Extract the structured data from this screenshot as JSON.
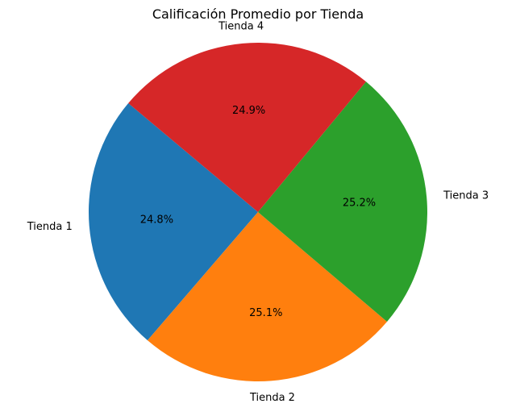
{
  "chart_data": {
    "type": "pie",
    "title": "Calificación Promedio por Tienda",
    "categories": [
      "Tienda 1",
      "Tienda 2",
      "Tienda 3",
      "Tienda 4"
    ],
    "values": [
      24.8,
      25.1,
      25.2,
      24.9
    ],
    "percent_labels": [
      "24.8%",
      "25.1%",
      "25.2%",
      "24.9%"
    ],
    "colors": [
      "#1f77b4",
      "#ff7f0e",
      "#2ca02c",
      "#d62728"
    ],
    "start_angle_deg": 140,
    "direction": "counterclockwise",
    "legend": "none"
  }
}
